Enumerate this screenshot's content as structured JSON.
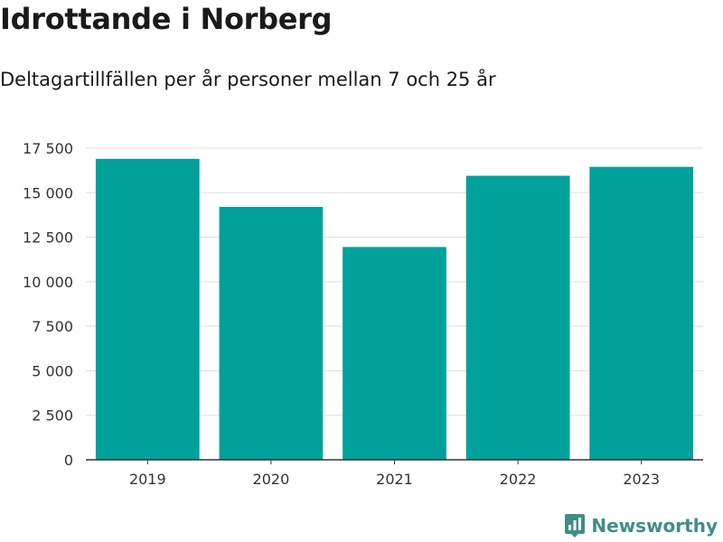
{
  "header": {
    "title": "Idrottande i Norberg",
    "subtitle": "Deltagartillfällen per år personer mellan 7 och 25 år"
  },
  "brand": {
    "name": "Newsworthy",
    "icon": "newsworthy-logo-icon"
  },
  "colors": {
    "bar": "#00a19a",
    "grid": "#dddddd",
    "axis": "#333333",
    "brand": "#3f8f86"
  },
  "chart_data": {
    "type": "bar",
    "categories": [
      "2019",
      "2020",
      "2021",
      "2022",
      "2023"
    ],
    "values": [
      16900,
      14200,
      11950,
      15950,
      16450
    ],
    "title": "Idrottande i Norberg",
    "subtitle": "Deltagartillfällen per år personer mellan 7 och 25 år",
    "xlabel": "",
    "ylabel": "",
    "ylim": [
      0,
      17500
    ],
    "yticks": [
      0,
      2500,
      5000,
      7500,
      10000,
      12500,
      15000,
      17500
    ],
    "ytick_labels": [
      "0",
      "2 500",
      "5 000",
      "7 500",
      "10 000",
      "12 500",
      "15 000",
      "17 500"
    ],
    "grid": true,
    "legend": "none"
  }
}
